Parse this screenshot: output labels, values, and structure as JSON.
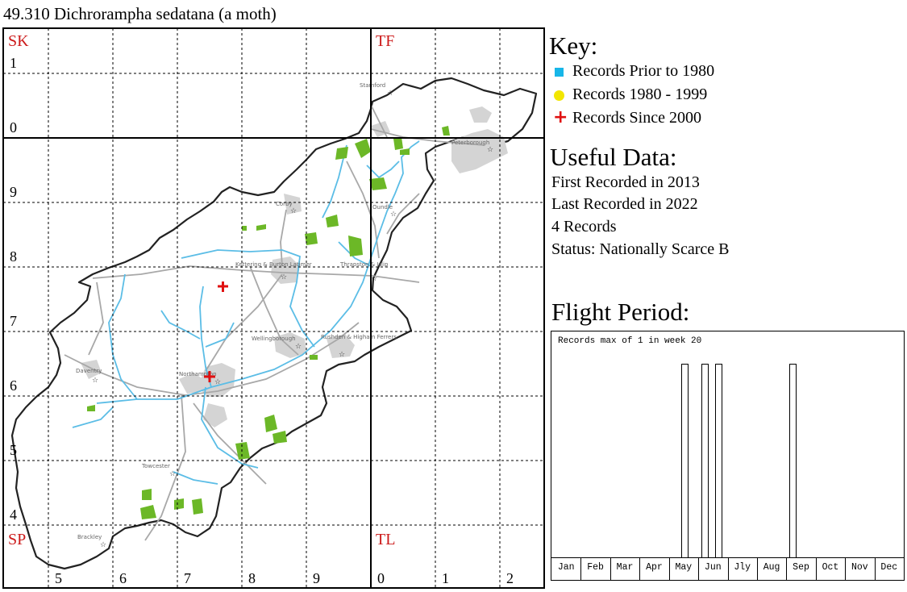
{
  "title": "49.310 Dichrorampha sedatana (a moth)",
  "grid": {
    "square_labels": [
      "SK",
      "TF",
      "SP",
      "TL"
    ],
    "northing_labels": [
      "1",
      "0",
      "9",
      "8",
      "7",
      "6",
      "5",
      "4"
    ],
    "easting_labels": [
      "5",
      "6",
      "7",
      "8",
      "9",
      "0",
      "1",
      "2"
    ],
    "label_color": "#cc1a1a"
  },
  "places": [
    "Stamford",
    "Peterborough",
    "Corby",
    "Oundle",
    "Kettering & Burton Latimer",
    "Thrapston & Islip",
    "Wellingborough",
    "Rushden & Higham Ferrers",
    "Daventry",
    "Northampton",
    "Towcester",
    "Brackley"
  ],
  "key": {
    "heading": "Key:",
    "items": [
      {
        "label": "Records Prior to 1980",
        "symbol": "square",
        "color": "#17b6e8"
      },
      {
        "label": "Records 1980 - 1999",
        "symbol": "circle",
        "color": "#f2e600"
      },
      {
        "label": "Records Since 2000",
        "symbol": "plus",
        "color": "#e01010"
      }
    ]
  },
  "useful_data": {
    "heading": "Useful Data:",
    "first": "First Recorded in 2013",
    "last": "Last Recorded in 2022",
    "count": "4 Records",
    "status": "Status: Nationally Scarce B"
  },
  "flight": {
    "heading": "Flight Period:",
    "caption": "Records max of 1 in week 20",
    "months": [
      "Jan",
      "Feb",
      "Mar",
      "Apr",
      "May",
      "Jun",
      "Jly",
      "Aug",
      "Sep",
      "Oct",
      "Nov",
      "Dec"
    ]
  },
  "chart_data": {
    "type": "bar",
    "title": "Flight Period:",
    "caption": "Records max of 1 in week 20",
    "x": [
      20,
      21,
      22,
      23,
      24,
      25,
      26,
      27,
      28,
      29,
      30,
      31,
      32,
      33,
      34,
      35,
      36
    ],
    "values": [
      1,
      0,
      0,
      1,
      0,
      1,
      0,
      0,
      0,
      0,
      0,
      0,
      0,
      0,
      0,
      0,
      1
    ],
    "ylim": [
      0,
      1
    ]
  },
  "records_since_2000": 2
}
